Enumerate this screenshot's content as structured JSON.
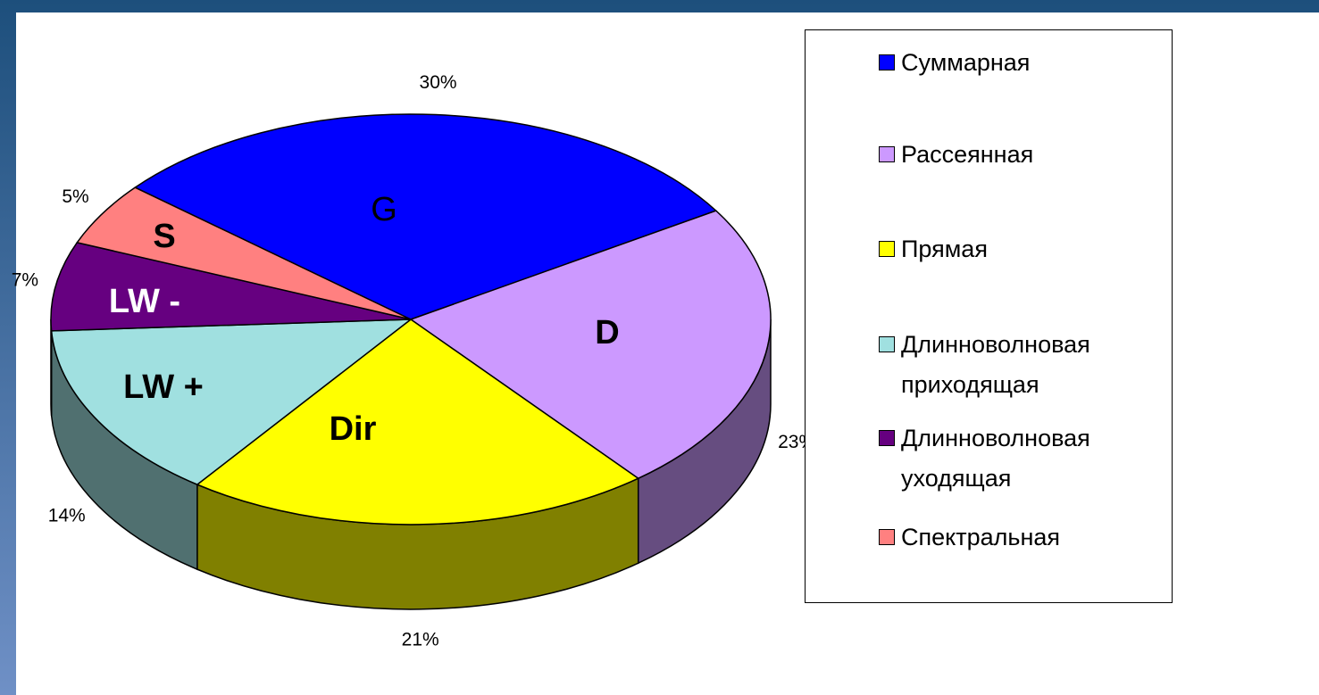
{
  "chart_data": {
    "type": "pie",
    "categories": [
      "Суммарная",
      "Рассеянная",
      "Прямая",
      "Длинноволновая приходящая",
      "Длинноволновая уходящая",
      "Спектральная"
    ],
    "slice_labels": [
      "G",
      "D",
      "Dir",
      "LW +",
      "LW -",
      "S"
    ],
    "values": [
      30,
      23,
      21,
      14,
      7,
      5
    ],
    "value_labels": [
      "30%",
      "23%",
      "21%",
      "14%",
      "7%",
      "5%"
    ],
    "colors": [
      "#0000ff",
      "#cc99ff",
      "#ffff00",
      "#a0e0e0",
      "#660080",
      "#ff8080"
    ],
    "legend": "right"
  }
}
